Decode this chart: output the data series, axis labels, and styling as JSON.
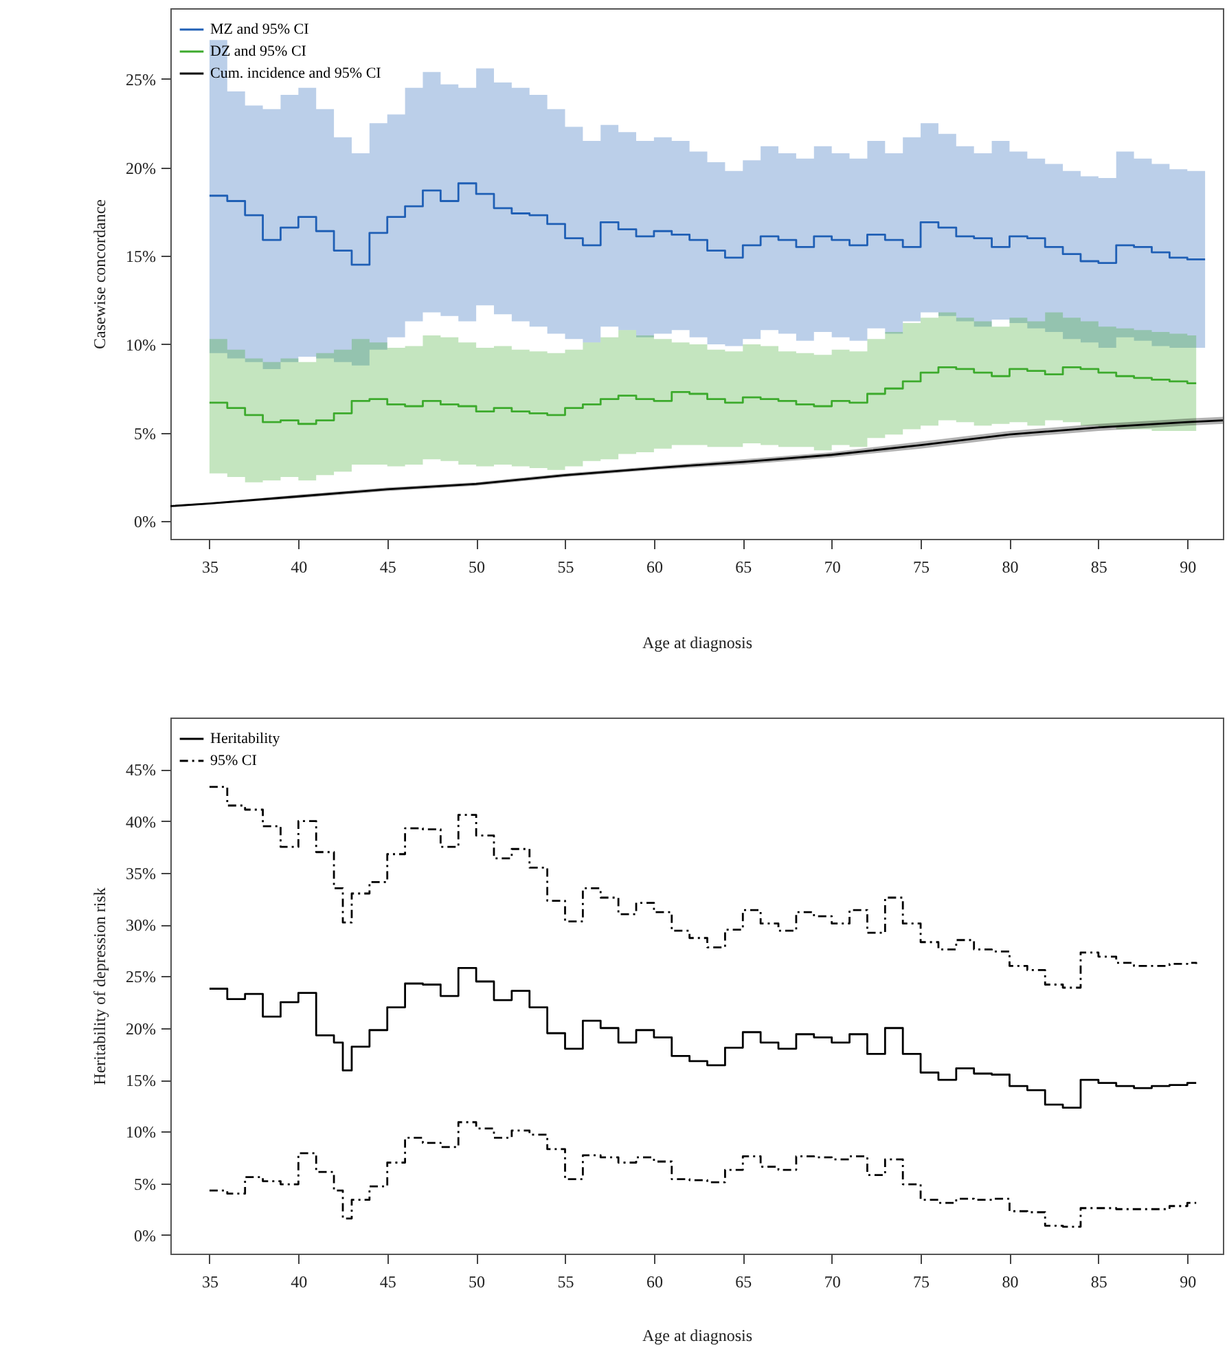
{
  "chart_data": [
    {
      "type": "step",
      "xlabel": "Age at diagnosis",
      "ylabel": "Casewise concordance",
      "legend": "top left",
      "x": [
        35,
        36,
        37,
        38,
        39,
        40,
        41,
        42,
        43,
        44,
        45,
        46,
        47,
        48,
        49,
        50,
        51,
        52,
        53,
        54,
        55,
        56,
        57,
        58,
        59,
        60,
        61,
        62,
        63,
        64,
        65,
        66,
        67,
        68,
        69,
        70,
        71,
        72,
        73,
        74,
        75,
        76,
        77,
        78,
        79,
        80,
        81,
        82,
        83,
        84,
        85,
        86,
        87,
        88,
        89,
        90,
        91
      ],
      "xlim": [
        32.8,
        92
      ],
      "xticks": [
        35,
        40,
        45,
        50,
        55,
        60,
        65,
        70,
        75,
        80,
        85,
        90
      ],
      "ylim": [
        -1,
        29
      ],
      "yticks": [
        {
          "value": 0,
          "label": "0%"
        },
        {
          "value": 5,
          "label": "5%"
        },
        {
          "value": 10,
          "label": "10%"
        },
        {
          "value": 15,
          "label": "15%"
        },
        {
          "value": 20,
          "label": "20%"
        },
        {
          "value": 25,
          "label": "25%"
        }
      ],
      "series": [
        {
          "name": "MZ and 95% CI",
          "color": "#1f5fb5",
          "values": [
            18.4,
            18.1,
            17.3,
            15.9,
            16.6,
            17.2,
            16.4,
            15.3,
            14.5,
            16.3,
            17.2,
            17.8,
            18.7,
            18.1,
            19.1,
            18.5,
            17.7,
            17.4,
            17.3,
            16.8,
            16.0,
            15.6,
            16.9,
            16.5,
            16.1,
            16.4,
            16.2,
            15.9,
            15.3,
            14.9,
            15.6,
            16.1,
            15.9,
            15.5,
            16.1,
            15.9,
            15.6,
            16.2,
            15.9,
            15.5,
            16.9,
            16.6,
            16.1,
            16.0,
            15.5,
            16.1,
            16.0,
            15.5,
            15.1,
            14.7,
            14.6,
            15.6,
            15.5,
            15.2,
            14.9,
            14.8,
            14.8
          ],
          "upper": [
            27.2,
            24.3,
            23.5,
            23.3,
            24.1,
            24.5,
            23.3,
            21.7,
            20.8,
            22.5,
            23.0,
            24.5,
            25.4,
            24.7,
            24.5,
            25.6,
            24.8,
            24.5,
            24.1,
            23.3,
            22.3,
            21.5,
            22.4,
            22.0,
            21.5,
            21.7,
            21.5,
            20.9,
            20.3,
            19.8,
            20.4,
            21.2,
            20.8,
            20.5,
            21.2,
            20.8,
            20.5,
            21.5,
            20.8,
            21.7,
            22.5,
            21.9,
            21.2,
            20.8,
            21.5,
            20.9,
            20.5,
            20.2,
            19.8,
            19.5,
            19.4,
            20.9,
            20.5,
            20.2,
            19.9,
            19.8,
            19.8
          ],
          "lower": [
            9.5,
            9.2,
            9.0,
            8.6,
            9.0,
            9.3,
            9.2,
            9.0,
            8.8,
            9.7,
            10.4,
            11.3,
            11.8,
            11.6,
            11.3,
            12.2,
            11.7,
            11.3,
            11.0,
            10.6,
            10.3,
            10.1,
            11.0,
            10.8,
            10.4,
            10.6,
            10.8,
            10.4,
            10.0,
            9.9,
            10.3,
            10.8,
            10.6,
            10.2,
            10.7,
            10.4,
            10.2,
            10.9,
            10.6,
            11.3,
            11.8,
            11.6,
            11.3,
            11.0,
            11.4,
            11.2,
            10.9,
            10.7,
            10.3,
            10.1,
            9.8,
            10.4,
            10.2,
            9.9,
            9.8,
            9.8,
            9.8
          ]
        },
        {
          "name": "DZ and 95% CI",
          "color": "#3caa2c",
          "x": [
            35,
            36,
            37,
            38,
            39,
            40,
            41,
            42,
            43,
            44,
            45,
            46,
            47,
            48,
            49,
            50,
            51,
            52,
            53,
            54,
            55,
            56,
            57,
            58,
            59,
            60,
            61,
            62,
            63,
            64,
            65,
            66,
            67,
            68,
            69,
            70,
            71,
            72,
            73,
            74,
            75,
            76,
            77,
            78,
            79,
            80,
            81,
            82,
            83,
            84,
            85,
            86,
            87,
            88,
            89,
            90,
            90.5
          ],
          "values": [
            6.7,
            6.4,
            6.0,
            5.6,
            5.7,
            5.5,
            5.7,
            6.1,
            6.8,
            6.9,
            6.6,
            6.5,
            6.8,
            6.6,
            6.5,
            6.2,
            6.4,
            6.2,
            6.1,
            6.0,
            6.4,
            6.6,
            6.9,
            7.1,
            6.9,
            6.8,
            7.3,
            7.2,
            6.9,
            6.7,
            7.0,
            6.9,
            6.8,
            6.6,
            6.5,
            6.8,
            6.7,
            7.2,
            7.5,
            7.9,
            8.4,
            8.7,
            8.6,
            8.4,
            8.2,
            8.6,
            8.5,
            8.3,
            8.7,
            8.6,
            8.4,
            8.2,
            8.1,
            8.0,
            7.9,
            7.8,
            7.8
          ],
          "upper": [
            10.3,
            9.7,
            9.2,
            9.0,
            9.2,
            9.0,
            9.5,
            9.7,
            10.3,
            10.1,
            9.8,
            9.9,
            10.5,
            10.4,
            10.1,
            9.8,
            9.9,
            9.7,
            9.6,
            9.5,
            9.7,
            10.1,
            10.4,
            10.8,
            10.5,
            10.3,
            10.1,
            10.0,
            9.7,
            9.6,
            10.0,
            9.9,
            9.6,
            9.5,
            9.4,
            9.7,
            9.6,
            10.3,
            10.7,
            11.2,
            11.5,
            11.8,
            11.5,
            11.3,
            11.0,
            11.5,
            11.3,
            11.8,
            11.5,
            11.3,
            11.0,
            10.9,
            10.8,
            10.7,
            10.6,
            10.5,
            10.5
          ],
          "lower": [
            2.7,
            2.5,
            2.2,
            2.3,
            2.5,
            2.3,
            2.6,
            2.8,
            3.2,
            3.2,
            3.1,
            3.2,
            3.5,
            3.4,
            3.2,
            3.1,
            3.2,
            3.1,
            3.0,
            2.9,
            3.1,
            3.4,
            3.5,
            3.8,
            3.9,
            4.1,
            4.3,
            4.3,
            4.2,
            4.2,
            4.4,
            4.3,
            4.2,
            4.2,
            4.0,
            4.3,
            4.2,
            4.7,
            4.9,
            5.2,
            5.4,
            5.7,
            5.6,
            5.4,
            5.5,
            5.6,
            5.4,
            5.7,
            5.6,
            5.4,
            5.3,
            5.2,
            5.2,
            5.1,
            5.1,
            5.1,
            5.1
          ]
        },
        {
          "name": "Cum. incidence and 95% CI",
          "color": "#000000",
          "type": "line",
          "x": [
            32.8,
            35,
            40,
            45,
            50,
            55,
            60,
            65,
            70,
            75,
            80,
            85,
            90,
            92
          ],
          "values": [
            0.85,
            1.0,
            1.4,
            1.8,
            2.1,
            2.6,
            3.0,
            3.35,
            3.75,
            4.3,
            4.9,
            5.3,
            5.6,
            5.7
          ],
          "lower": [
            0.8,
            0.95,
            1.3,
            1.7,
            2.0,
            2.5,
            2.9,
            3.2,
            3.6,
            4.1,
            4.7,
            5.1,
            5.4,
            5.5
          ],
          "upper": [
            0.9,
            1.05,
            1.5,
            1.9,
            2.2,
            2.7,
            3.1,
            3.5,
            3.9,
            4.5,
            5.1,
            5.5,
            5.8,
            5.9
          ]
        }
      ]
    },
    {
      "type": "step",
      "xlabel": "Age at diagnosis",
      "ylabel": "Heritability of depression risk",
      "legend": "top left",
      "x": [
        35,
        36,
        37,
        38,
        39,
        40,
        41,
        42,
        42.5,
        43,
        44,
        45,
        46,
        47,
        48,
        49,
        50,
        51,
        52,
        53,
        54,
        55,
        56,
        57,
        58,
        59,
        60,
        61,
        62,
        63,
        64,
        65,
        66,
        67,
        68,
        69,
        70,
        71,
        72,
        73,
        74,
        75,
        76,
        77,
        78,
        79,
        80,
        81,
        82,
        83,
        84,
        85,
        86,
        87,
        88,
        89,
        90,
        90.5
      ],
      "xlim": [
        32.8,
        92
      ],
      "xticks": [
        35,
        40,
        45,
        50,
        55,
        60,
        65,
        70,
        75,
        80,
        85,
        90
      ],
      "ylim": [
        -1.8,
        50
      ],
      "yticks": [
        {
          "value": 0,
          "label": "0%"
        },
        {
          "value": 5,
          "label": "5%"
        },
        {
          "value": 10,
          "label": "10%"
        },
        {
          "value": 15,
          "label": "15%"
        },
        {
          "value": 20,
          "label": "20%"
        },
        {
          "value": 25,
          "label": "25%"
        },
        {
          "value": 30,
          "label": "30%"
        },
        {
          "value": 35,
          "label": "35%"
        },
        {
          "value": 40,
          "label": "40%"
        },
        {
          "value": 45,
          "label": "45%"
        }
      ],
      "series": [
        {
          "name": "Heritability",
          "color": "#000000",
          "line_style": "solid",
          "values": [
            23.8,
            22.8,
            23.3,
            21.1,
            22.5,
            23.4,
            19.3,
            18.6,
            15.9,
            18.2,
            19.8,
            22.0,
            24.3,
            24.2,
            23.1,
            25.8,
            24.5,
            22.7,
            23.6,
            22.0,
            19.5,
            18.0,
            20.7,
            20.0,
            18.6,
            19.8,
            19.1,
            17.3,
            16.8,
            16.4,
            18.1,
            19.6,
            18.6,
            18.0,
            19.4,
            19.1,
            18.6,
            19.4,
            17.5,
            20.0,
            17.5,
            15.7,
            15.0,
            16.1,
            15.6,
            15.5,
            14.4,
            14.0,
            12.6,
            12.3,
            15.0,
            14.7,
            14.4,
            14.2,
            14.4,
            14.5,
            14.7,
            14.7
          ]
        },
        {
          "name": "95% CI",
          "color": "#000000",
          "line_style": "dashed",
          "values": [
            43.3,
            41.5,
            41.1,
            39.5,
            37.5,
            40.0,
            37.0,
            33.5,
            30.2,
            33.0,
            34.1,
            36.8,
            39.3,
            39.2,
            37.5,
            40.6,
            38.6,
            36.4,
            37.3,
            35.5,
            32.3,
            30.3,
            33.5,
            32.6,
            31.0,
            32.1,
            31.2,
            29.4,
            28.7,
            27.8,
            29.5,
            31.4,
            30.1,
            29.4,
            31.2,
            30.8,
            30.1,
            31.4,
            29.2,
            32.6,
            30.1,
            28.3,
            27.6,
            28.5,
            27.6,
            27.4,
            26.0,
            25.6,
            24.2,
            23.9,
            27.3,
            26.9,
            26.3,
            26.0,
            26.0,
            26.2,
            26.3,
            26.2
          ]
        },
        {
          "color": "#000000",
          "line_style": "dashed",
          "values": [
            4.3,
            4.0,
            5.6,
            5.2,
            4.9,
            7.9,
            6.1,
            4.3,
            1.6,
            3.4,
            4.7,
            7.0,
            9.4,
            8.9,
            8.5,
            10.9,
            10.3,
            9.4,
            10.1,
            9.7,
            8.3,
            5.4,
            7.7,
            7.5,
            7.0,
            7.5,
            7.1,
            5.4,
            5.3,
            5.1,
            6.3,
            7.6,
            6.6,
            6.3,
            7.6,
            7.5,
            7.3,
            7.6,
            5.8,
            7.3,
            4.9,
            3.4,
            3.1,
            3.5,
            3.4,
            3.5,
            2.3,
            2.2,
            0.9,
            0.8,
            2.6,
            2.6,
            2.5,
            2.5,
            2.5,
            2.8,
            3.1,
            3.1
          ]
        }
      ]
    }
  ]
}
